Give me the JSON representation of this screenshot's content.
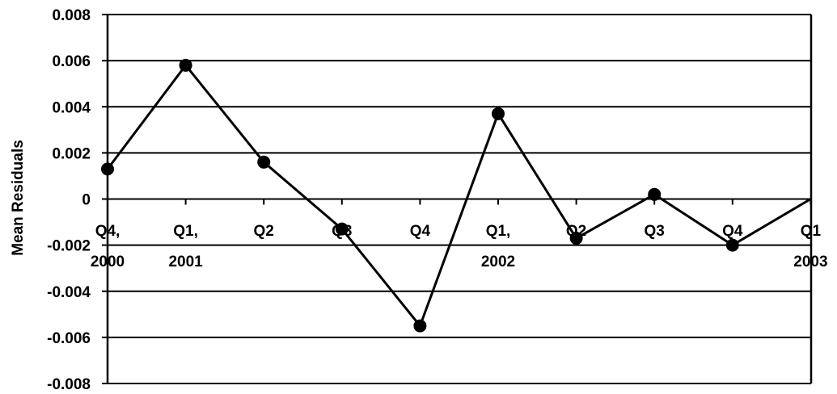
{
  "chart_data": {
    "type": "line",
    "title": "",
    "xlabel": "",
    "ylabel": "Mean Residuals",
    "ylim": [
      -0.008,
      0.008
    ],
    "y_ticks": [
      "0.008",
      "0.006",
      "0.004",
      "0.002",
      "0",
      "-0.002",
      "-0.004",
      "-0.006",
      "-0.008"
    ],
    "categories": [
      [
        "Q4,",
        "2000"
      ],
      [
        "Q1,",
        "2001"
      ],
      [
        "Q2"
      ],
      [
        "Q3"
      ],
      [
        "Q4"
      ],
      [
        "Q1,",
        "2002"
      ],
      [
        "Q2"
      ],
      [
        "Q3"
      ],
      [
        "Q4"
      ],
      [
        "Q1",
        "2003"
      ]
    ],
    "series": [
      {
        "values": [
          0.0013,
          0.0058,
          0.0016,
          -0.0013,
          -0.0055,
          0.0037,
          -0.0017,
          0.0002,
          -0.002,
          0.0
        ]
      }
    ],
    "grid": "horizontal",
    "line_color": "#000000",
    "marker_color": "#000000"
  }
}
